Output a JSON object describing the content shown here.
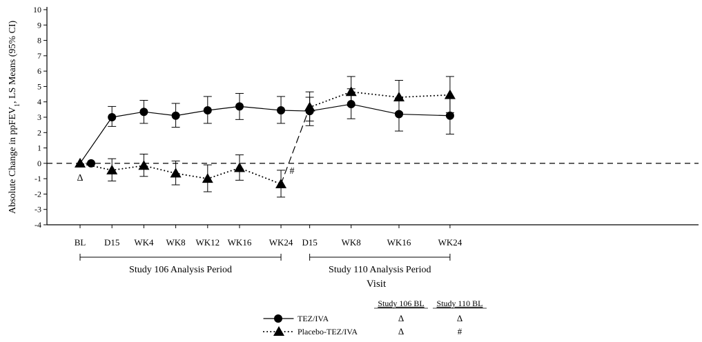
{
  "chart_data": {
    "type": "line",
    "ylabel_main": "Absolute Change in ppFEV",
    "ylabel_sub": "1",
    "ylabel_rest": ", LS Means (95% CI)",
    "xlabel": "Visit",
    "ylim": [
      -4,
      10
    ],
    "yticks": [
      -4,
      -3,
      -2,
      -1,
      0,
      1,
      2,
      3,
      4,
      5,
      6,
      7,
      8,
      9,
      10
    ],
    "x_positions": {
      "BL": 0,
      "D15": 1,
      "WK4": 2,
      "WK8": 3,
      "WK12": 4,
      "WK16": 5,
      "WK24": 6.3,
      "D15b": 7.2,
      "WK8b": 8.5,
      "WK16b": 10.0,
      "WK24b": 11.6
    },
    "ticks": [
      {
        "key": "BL",
        "label": "BL"
      },
      {
        "key": "D15",
        "label": "D15"
      },
      {
        "key": "WK4",
        "label": "WK4"
      },
      {
        "key": "WK8",
        "label": "WK8"
      },
      {
        "key": "WK12",
        "label": "WK12"
      },
      {
        "key": "WK16",
        "label": "WK16"
      },
      {
        "key": "WK24",
        "label": "WK24"
      },
      {
        "key": "D15b",
        "label": "D15"
      },
      {
        "key": "WK8b",
        "label": "WK8"
      },
      {
        "key": "WK16b",
        "label": "WK16"
      },
      {
        "key": "WK24b",
        "label": "WK24"
      }
    ],
    "periods": [
      {
        "label": "Study 106 Analysis Period",
        "from": "BL",
        "to": "WK24"
      },
      {
        "label": "Study 110 Analysis Period",
        "from": "D15b",
        "to": "WK24b"
      }
    ],
    "series": [
      {
        "name": "TEZ/IVA",
        "marker": "circle",
        "line": "solid",
        "points": [
          {
            "x": "BL",
            "y": 0.0
          },
          {
            "x": "D15",
            "y": 3.0,
            "lo": 2.4,
            "hi": 3.7
          },
          {
            "x": "WK4",
            "y": 3.35,
            "lo": 2.6,
            "hi": 4.1
          },
          {
            "x": "WK8",
            "y": 3.1,
            "lo": 2.35,
            "hi": 3.9
          },
          {
            "x": "WK12",
            "y": 3.45,
            "lo": 2.6,
            "hi": 4.35
          },
          {
            "x": "WK16",
            "y": 3.7,
            "lo": 2.85,
            "hi": 4.55
          },
          {
            "x": "WK24",
            "y": 3.45,
            "lo": 2.6,
            "hi": 4.35
          },
          {
            "x": "D15b",
            "y": 3.4,
            "lo": 2.45,
            "hi": 4.3
          },
          {
            "x": "WK8b",
            "y": 3.85,
            "lo": 2.9,
            "hi": 4.85
          },
          {
            "x": "WK16b",
            "y": 3.2,
            "lo": 2.1,
            "hi": 4.25
          },
          {
            "x": "WK24b",
            "y": 3.1,
            "lo": 1.9,
            "hi": 4.3
          }
        ]
      },
      {
        "name": "Placebo-TEZ/IVA",
        "marker": "triangle",
        "line": "dotted",
        "points": [
          {
            "x": "BL",
            "y": 0.0
          },
          {
            "x": "D15",
            "y": -0.45,
            "lo": -1.15,
            "hi": 0.3
          },
          {
            "x": "WK4",
            "y": -0.15,
            "lo": -0.85,
            "hi": 0.6
          },
          {
            "x": "WK8",
            "y": -0.65,
            "lo": -1.4,
            "hi": 0.15
          },
          {
            "x": "WK12",
            "y": -1.0,
            "lo": -1.85,
            "hi": -0.1
          },
          {
            "x": "WK16",
            "y": -0.3,
            "lo": -1.1,
            "hi": 0.55
          },
          {
            "x": "WK24",
            "y": -1.35,
            "lo": -2.2,
            "hi": -0.45
          },
          {
            "x": "D15b",
            "y": 3.65,
            "lo": 2.75,
            "hi": 4.65
          },
          {
            "x": "WK8b",
            "y": 4.65,
            "lo": 3.75,
            "hi": 5.65
          },
          {
            "x": "WK16b",
            "y": 4.3,
            "lo": 3.3,
            "hi": 5.4
          },
          {
            "x": "WK24b",
            "y": 4.45,
            "lo": 3.3,
            "hi": 5.65
          }
        ]
      }
    ],
    "annotations": [
      {
        "text": "Δ",
        "x": "BL",
        "y": -0.9
      },
      {
        "text": "#",
        "x": "WK24",
        "y": -0.45,
        "dx": 16
      }
    ],
    "legend": {
      "placement": "bottom-center",
      "col_headers": [
        "Study 106 BL",
        "Study 110 BL"
      ],
      "rows": [
        {
          "series": "TEZ/IVA",
          "values": [
            "Δ",
            "Δ"
          ]
        },
        {
          "series": "Placebo-TEZ/IVA",
          "values": [
            "Δ",
            "#"
          ]
        }
      ]
    }
  }
}
